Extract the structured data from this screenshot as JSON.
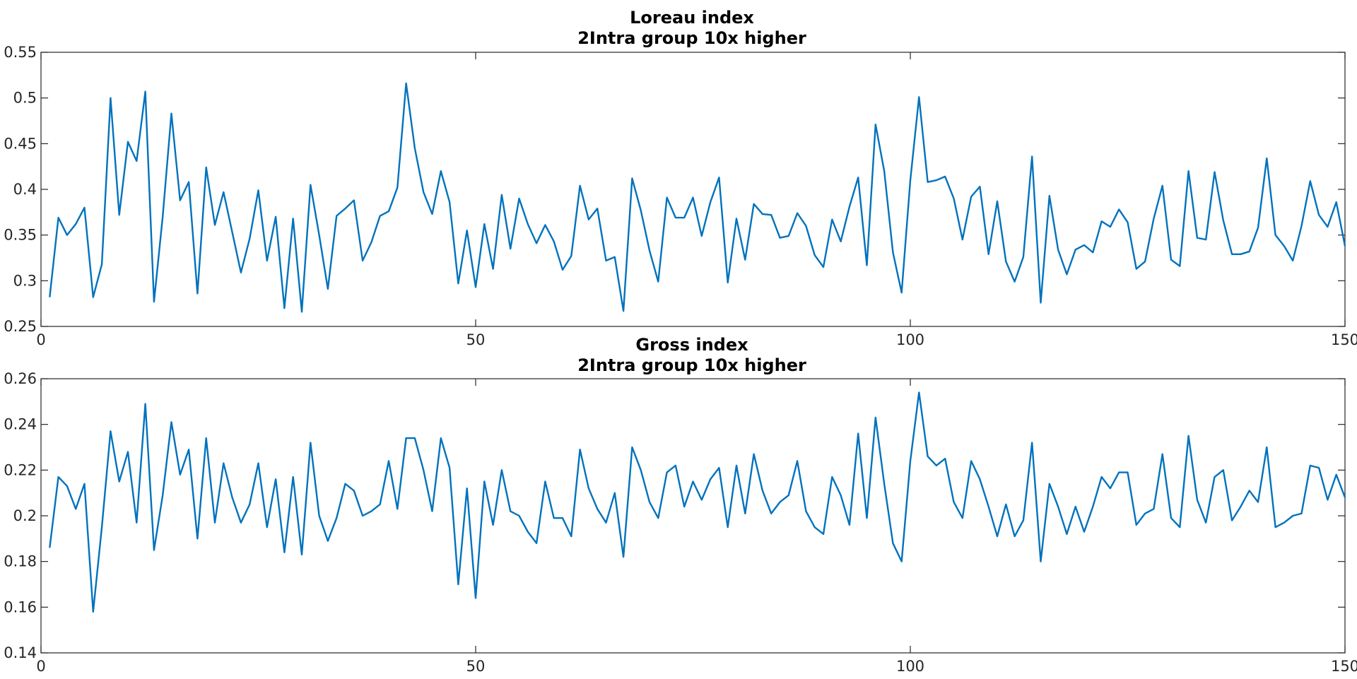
{
  "chart_data": [
    {
      "type": "line",
      "title": "Loreau index",
      "subtitle": "2Intra group 10x higher",
      "xlabel": "",
      "ylabel": "",
      "xlim": [
        0,
        150
      ],
      "ylim": [
        0.25,
        0.55
      ],
      "xticks": [
        0,
        50,
        100,
        150
      ],
      "xtick_labels": [
        "0",
        "50",
        "100",
        "150"
      ],
      "yticks": [
        0.25,
        0.3,
        0.35,
        0.4,
        0.45,
        0.5,
        0.55
      ],
      "ytick_labels": [
        "0.25",
        "0.3",
        "0.35",
        "0.4",
        "0.45",
        "0.5",
        "0.55"
      ],
      "grid": false,
      "color": "#0072bd",
      "x_start": 1,
      "values": [
        0.282,
        0.369,
        0.35,
        0.362,
        0.38,
        0.282,
        0.318,
        0.5,
        0.372,
        0.452,
        0.431,
        0.507,
        0.277,
        0.37,
        0.483,
        0.388,
        0.408,
        0.286,
        0.424,
        0.361,
        0.397,
        0.353,
        0.309,
        0.346,
        0.399,
        0.322,
        0.37,
        0.27,
        0.368,
        0.266,
        0.405,
        0.35,
        0.291,
        0.371,
        0.379,
        0.388,
        0.322,
        0.342,
        0.371,
        0.376,
        0.402,
        0.516,
        0.445,
        0.397,
        0.373,
        0.42,
        0.386,
        0.297,
        0.355,
        0.293,
        0.362,
        0.313,
        0.394,
        0.335,
        0.39,
        0.362,
        0.341,
        0.361,
        0.343,
        0.312,
        0.327,
        0.404,
        0.367,
        0.379,
        0.322,
        0.326,
        0.267,
        0.412,
        0.377,
        0.333,
        0.299,
        0.391,
        0.369,
        0.369,
        0.391,
        0.349,
        0.386,
        0.413,
        0.298,
        0.368,
        0.323,
        0.384,
        0.373,
        0.372,
        0.347,
        0.349,
        0.374,
        0.36,
        0.328,
        0.315,
        0.367,
        0.343,
        0.381,
        0.413,
        0.317,
        0.471,
        0.42,
        0.331,
        0.287,
        0.41,
        0.501,
        0.408,
        0.41,
        0.414,
        0.39,
        0.345,
        0.392,
        0.403,
        0.329,
        0.387,
        0.321,
        0.299,
        0.326,
        0.436,
        0.276,
        0.393,
        0.334,
        0.307,
        0.334,
        0.339,
        0.331,
        0.365,
        0.359,
        0.378,
        0.364,
        0.313,
        0.321,
        0.368,
        0.404,
        0.323,
        0.316,
        0.42,
        0.347,
        0.345,
        0.419,
        0.366,
        0.329,
        0.329,
        0.332,
        0.358,
        0.434,
        0.35,
        0.338,
        0.322,
        0.36,
        0.409,
        0.372,
        0.359,
        0.386,
        0.338
      ]
    },
    {
      "type": "line",
      "title": "Gross index",
      "subtitle": "2Intra group 10x higher",
      "xlabel": "",
      "ylabel": "",
      "xlim": [
        0,
        150
      ],
      "ylim": [
        0.14,
        0.26
      ],
      "xticks": [
        0,
        50,
        100,
        150
      ],
      "xtick_labels": [
        "0",
        "50",
        "100",
        "150"
      ],
      "yticks": [
        0.14,
        0.16,
        0.18,
        0.2,
        0.22,
        0.24,
        0.26
      ],
      "ytick_labels": [
        "0.14",
        "0.16",
        "0.18",
        "0.2",
        "0.22",
        "0.24",
        "0.26"
      ],
      "grid": false,
      "color": "#0072bd",
      "x_start": 1,
      "values": [
        0.186,
        0.217,
        0.213,
        0.203,
        0.214,
        0.158,
        0.195,
        0.237,
        0.215,
        0.228,
        0.197,
        0.249,
        0.185,
        0.209,
        0.241,
        0.218,
        0.229,
        0.19,
        0.234,
        0.197,
        0.223,
        0.208,
        0.197,
        0.205,
        0.223,
        0.195,
        0.216,
        0.184,
        0.217,
        0.183,
        0.232,
        0.2,
        0.189,
        0.199,
        0.214,
        0.211,
        0.2,
        0.202,
        0.205,
        0.224,
        0.203,
        0.234,
        0.234,
        0.22,
        0.202,
        0.234,
        0.221,
        0.17,
        0.212,
        0.164,
        0.215,
        0.196,
        0.22,
        0.202,
        0.2,
        0.193,
        0.188,
        0.215,
        0.199,
        0.199,
        0.191,
        0.229,
        0.212,
        0.203,
        0.197,
        0.21,
        0.182,
        0.23,
        0.22,
        0.206,
        0.199,
        0.219,
        0.222,
        0.204,
        0.215,
        0.207,
        0.216,
        0.221,
        0.195,
        0.222,
        0.201,
        0.227,
        0.211,
        0.201,
        0.206,
        0.209,
        0.224,
        0.202,
        0.195,
        0.192,
        0.217,
        0.209,
        0.196,
        0.236,
        0.199,
        0.243,
        0.214,
        0.188,
        0.18,
        0.224,
        0.254,
        0.226,
        0.222,
        0.225,
        0.206,
        0.199,
        0.224,
        0.216,
        0.204,
        0.191,
        0.205,
        0.191,
        0.198,
        0.232,
        0.18,
        0.214,
        0.204,
        0.192,
        0.204,
        0.193,
        0.204,
        0.217,
        0.212,
        0.219,
        0.219,
        0.196,
        0.201,
        0.203,
        0.227,
        0.199,
        0.195,
        0.235,
        0.207,
        0.197,
        0.217,
        0.22,
        0.198,
        0.204,
        0.211,
        0.206,
        0.23,
        0.195,
        0.197,
        0.2,
        0.201,
        0.222,
        0.221,
        0.207,
        0.218,
        0.208
      ]
    }
  ]
}
